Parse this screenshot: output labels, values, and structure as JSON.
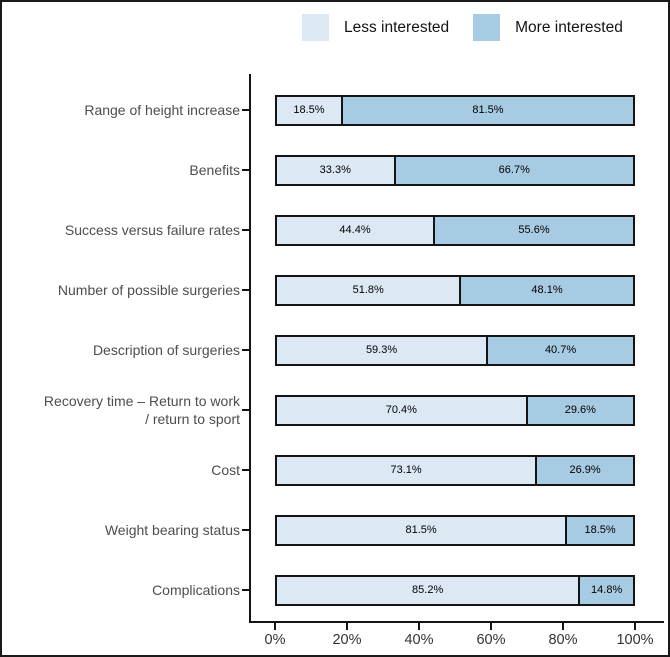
{
  "chart_data": {
    "type": "bar",
    "orientation": "horizontal",
    "stacked": true,
    "title": "",
    "xlabel": "",
    "ylabel": "",
    "xlim": [
      0,
      100
    ],
    "grid": false,
    "legend_position": "top",
    "categories": [
      "Range of height increase",
      "Benefits",
      "Success versus failure rates",
      "Number of possible surgeries",
      "Description of surgeries",
      "Recovery time – Return to work\n/ return to sport",
      "Cost",
      "Weight bearing status",
      "Complications"
    ],
    "series": [
      {
        "name": "Less interested",
        "color": "#dce9f5",
        "values": [
          18.5,
          33.3,
          44.4,
          51.8,
          59.3,
          70.4,
          73.1,
          81.5,
          85.2
        ],
        "labels": [
          "18.5%",
          "33.3%",
          "44.4%",
          "51.8%",
          "59.3%",
          "70.4%",
          "73.1%",
          "81.5%",
          "85.2%"
        ]
      },
      {
        "name": "More interested",
        "color": "#a6cbe2",
        "values": [
          81.5,
          66.7,
          55.6,
          48.1,
          40.7,
          29.6,
          26.9,
          18.5,
          14.8
        ],
        "labels": [
          "81.5%",
          "66.7%",
          "55.6%",
          "48.1%",
          "40.7%",
          "29.6%",
          "26.9%",
          "18.5%",
          "14.8%"
        ]
      }
    ],
    "x_axis": {
      "ticks": [
        "0%",
        "20%",
        "40%",
        "60%",
        "80%",
        "100%"
      ],
      "tick_values": [
        0,
        20,
        40,
        60,
        80,
        100
      ]
    },
    "colors": {
      "bar_border": "#141414",
      "axis_line": "#141414",
      "category_text": "#4d4d4d",
      "tick_text": "#333333",
      "value_text": "#000000",
      "legend_text": "#141414"
    }
  }
}
